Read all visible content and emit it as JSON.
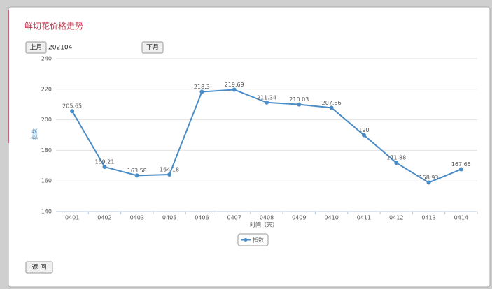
{
  "page": {
    "title": "鲜切花价格走势",
    "prev_button": "上月",
    "month": "202104",
    "next_button": "下月",
    "back_button": "返 回"
  },
  "chart_data": {
    "type": "line",
    "x_label": "时间（天）",
    "y_label": "指数",
    "categories": [
      "0401",
      "0402",
      "0403",
      "0405",
      "0406",
      "0407",
      "0408",
      "0409",
      "0410",
      "0411",
      "0412",
      "0413",
      "0414"
    ],
    "series": [
      {
        "name": "指数",
        "color": "#4a8cc6",
        "values": [
          205.65,
          169.21,
          163.58,
          164.18,
          218.3,
          219.69,
          211.34,
          210.03,
          207.86,
          190,
          171.88,
          158.93,
          167.65
        ]
      }
    ],
    "ylim": [
      140,
      240
    ],
    "yticks": [
      140,
      160,
      180,
      200,
      220,
      240
    ],
    "grid": true,
    "legend": "bottom"
  }
}
